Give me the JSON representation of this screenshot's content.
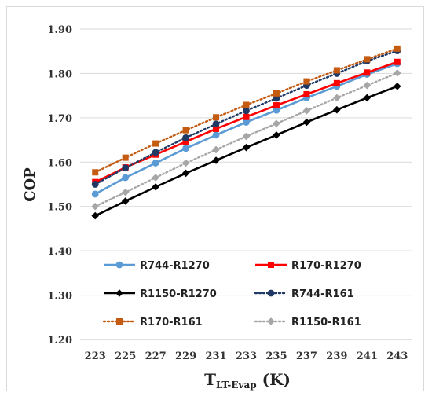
{
  "chart_data": {
    "type": "line",
    "x": [
      223,
      225,
      227,
      229,
      231,
      233,
      235,
      237,
      239,
      241,
      243
    ],
    "xlabel": "T",
    "xlabel_sub": "LT-Evap",
    "xlabel_unit": " (K)",
    "ylabel": "COP",
    "ylim": [
      1.2,
      1.9
    ],
    "yticks": [
      "1.20",
      "1.30",
      "1.40",
      "1.50",
      "1.60",
      "1.70",
      "1.80",
      "1.90"
    ],
    "grid": "horizontal",
    "legend": "bottom-inside",
    "series": [
      {
        "name": "R744-R1270",
        "color": "#5b9bd5",
        "style": "solid",
        "marker": "circle",
        "values": [
          1.528,
          1.565,
          1.598,
          1.631,
          1.661,
          1.69,
          1.717,
          1.745,
          1.771,
          1.798,
          1.822
        ]
      },
      {
        "name": "R170-R1270",
        "color": "#ff0000",
        "style": "solid",
        "marker": "square",
        "values": [
          1.555,
          1.588,
          1.617,
          1.646,
          1.675,
          1.702,
          1.728,
          1.753,
          1.778,
          1.802,
          1.826
        ]
      },
      {
        "name": "R1150-R1270",
        "color": "#000000",
        "style": "solid",
        "marker": "diamond",
        "values": [
          1.479,
          1.512,
          1.544,
          1.575,
          1.604,
          1.633,
          1.661,
          1.69,
          1.718,
          1.745,
          1.771
        ]
      },
      {
        "name": "R744-R161",
        "color": "#1f3864",
        "style": "dotted",
        "marker": "circle",
        "values": [
          1.55,
          1.587,
          1.622,
          1.655,
          1.686,
          1.716,
          1.744,
          1.773,
          1.8,
          1.828,
          1.851
        ]
      },
      {
        "name": "R170-R161",
        "color": "#c55a11",
        "style": "dotted",
        "marker": "square",
        "values": [
          1.577,
          1.61,
          1.642,
          1.672,
          1.701,
          1.729,
          1.755,
          1.782,
          1.807,
          1.832,
          1.856
        ]
      },
      {
        "name": "R1150-R161",
        "color": "#a6a6a6",
        "style": "dotted",
        "marker": "diamond",
        "values": [
          1.5,
          1.532,
          1.565,
          1.598,
          1.628,
          1.658,
          1.687,
          1.716,
          1.745,
          1.773,
          1.801
        ]
      }
    ]
  }
}
